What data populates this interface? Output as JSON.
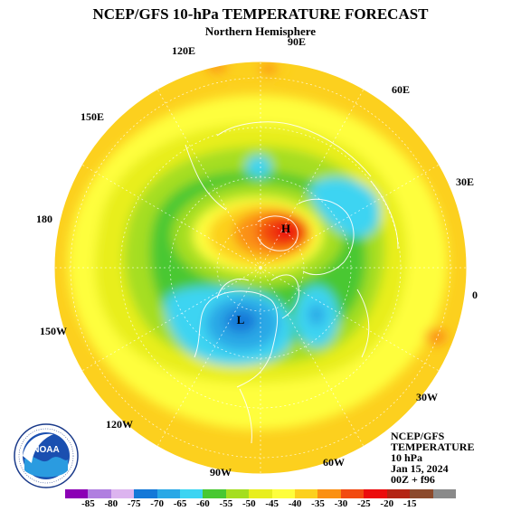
{
  "header": {
    "title": "NCEP/GFS 10-hPa TEMPERATURE FORECAST",
    "subtitle": "Northern Hemisphere"
  },
  "map": {
    "longitude_labels": {
      "lon_90e": "90E",
      "lon_60e": "60E",
      "lon_30e": "30E",
      "lon_0": "0",
      "lon_30w": "30W",
      "lon_60w": "60W",
      "lon_90w": "90W",
      "lon_120w": "120W",
      "lon_150w": "150W",
      "lon_180": "180",
      "lon_150e": "150E",
      "lon_120e": "120E"
    },
    "high_marker": "H",
    "low_marker": "L"
  },
  "info": {
    "model": "NCEP/GFS",
    "field": "TEMPERATURE",
    "level": "10 hPa",
    "date": "Jan 15, 2024",
    "run": "00Z + f96"
  },
  "logo": {
    "text": "NOAA"
  },
  "colorbar": {
    "colors": [
      "#8b00b5",
      "#b07fe0",
      "#dcb4ef",
      "#1478d8",
      "#2aa8e6",
      "#3cd4f2",
      "#48c832",
      "#a5de20",
      "#e8ee1e",
      "#fefe3c",
      "#fcd01e",
      "#fb9012",
      "#f24a10",
      "#ec0c0c",
      "#b42414",
      "#8c4a2c",
      "#8a8a8a"
    ],
    "labels": [
      "-85",
      "-80",
      "-75",
      "-70",
      "-65",
      "-60",
      "-55",
      "-50",
      "-45",
      "-40",
      "-35",
      "-30",
      "-25",
      "-20",
      "-15"
    ]
  }
}
